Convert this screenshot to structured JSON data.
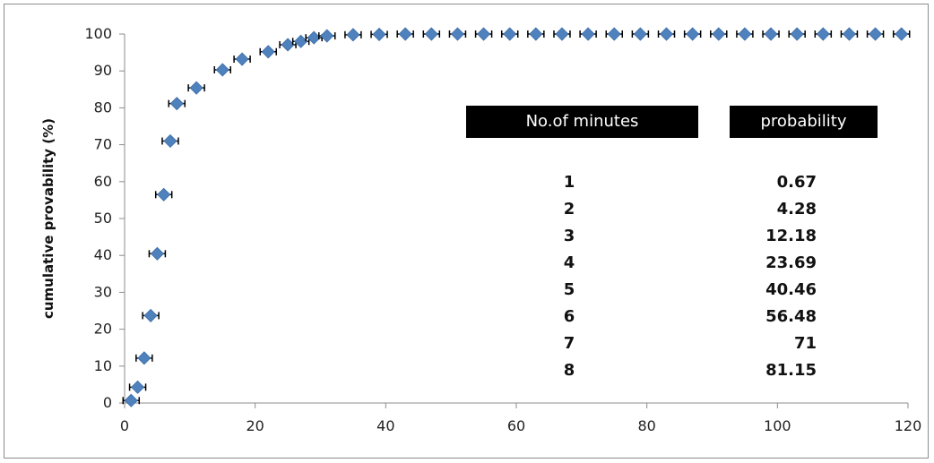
{
  "chart_data": {
    "type": "scatter",
    "xlabel": "",
    "ylabel": "cumulative provability (%)",
    "xlim": [
      0,
      120
    ],
    "ylim": [
      0,
      100
    ],
    "xticks": [
      0,
      20,
      40,
      60,
      80,
      100,
      120
    ],
    "yticks": [
      0,
      10,
      20,
      30,
      40,
      50,
      60,
      70,
      80,
      90,
      100
    ],
    "grid": false,
    "marker_color": "#4f81bd",
    "errorbar_color": "#000000",
    "points": [
      [
        1,
        0.67
      ],
      [
        2,
        4.28
      ],
      [
        3,
        12.18
      ],
      [
        4,
        23.69
      ],
      [
        5,
        40.46
      ],
      [
        6,
        56.48
      ],
      [
        7,
        71
      ],
      [
        8,
        81.15
      ],
      [
        11,
        85.4
      ],
      [
        15,
        90.3
      ],
      [
        18,
        93.2
      ],
      [
        22,
        95.2
      ],
      [
        25,
        97.1
      ],
      [
        27,
        98.0
      ],
      [
        29,
        99.0
      ],
      [
        31,
        99.5
      ],
      [
        35,
        99.8
      ],
      [
        39,
        99.9
      ],
      [
        43,
        100
      ],
      [
        47,
        100
      ],
      [
        51,
        100
      ],
      [
        55,
        100
      ],
      [
        59,
        100
      ],
      [
        63,
        100
      ],
      [
        67,
        100
      ],
      [
        71,
        100
      ],
      [
        75,
        100
      ],
      [
        79,
        100
      ],
      [
        83,
        100
      ],
      [
        87,
        100
      ],
      [
        91,
        100
      ],
      [
        95,
        100
      ],
      [
        99,
        100
      ],
      [
        103,
        100
      ],
      [
        107,
        100
      ],
      [
        111,
        100
      ],
      [
        115,
        100
      ],
      [
        119,
        100
      ]
    ],
    "table": {
      "headers": [
        "No.of minutes",
        "probability"
      ],
      "rows": [
        [
          "1",
          "0.67"
        ],
        [
          "2",
          "4.28"
        ],
        [
          "3",
          "12.18"
        ],
        [
          "4",
          "23.69"
        ],
        [
          "5",
          "40.46"
        ],
        [
          "6",
          "56.48"
        ],
        [
          "7",
          "71"
        ],
        [
          "8",
          "81.15"
        ]
      ]
    }
  }
}
